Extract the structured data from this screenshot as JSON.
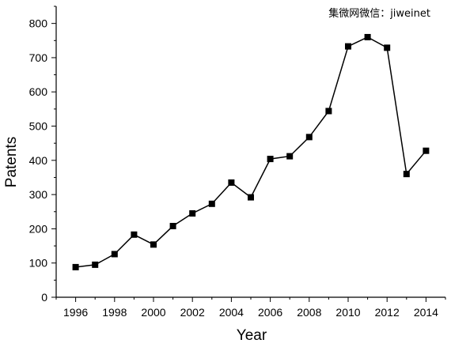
{
  "watermark": "集微网微信：jiweinet",
  "chart_data": {
    "type": "line",
    "xlabel": "Year",
    "ylabel": "Patents",
    "xlim": [
      1995,
      2015
    ],
    "ylim": [
      0,
      850
    ],
    "x_ticks": [
      1996,
      1998,
      2000,
      2002,
      2004,
      2006,
      2008,
      2010,
      2012,
      2014
    ],
    "y_ticks": [
      0,
      100,
      200,
      300,
      400,
      500,
      600,
      700,
      800
    ],
    "marker": "square",
    "line_color": "#000000",
    "grid": false,
    "legend": "none",
    "series": [
      {
        "x": [
          1996,
          1997,
          1998,
          1999,
          2000,
          2001,
          2002,
          2003,
          2004,
          2005,
          2006,
          2007,
          2008,
          2009,
          2010,
          2011,
          2012,
          2013,
          2014
        ],
        "y": [
          88,
          95,
          126,
          183,
          154,
          208,
          245,
          273,
          335,
          292,
          404,
          412,
          468,
          544,
          733,
          760,
          729,
          360,
          428
        ]
      }
    ]
  }
}
